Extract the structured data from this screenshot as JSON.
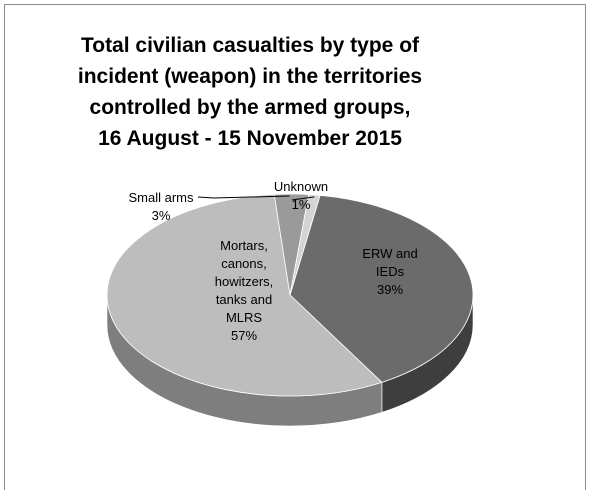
{
  "chart_data": {
    "type": "pie",
    "title_lines": [
      "Total civilian casualties by type of",
      "incident (weapon) in the territories",
      "controlled by the armed groups,",
      "16 August - 15 November 2015"
    ],
    "slices": [
      {
        "name": "ERW and IEDs",
        "value": 39,
        "label_lines": [
          "ERW and",
          "IEDs",
          "39%"
        ],
        "color": "#6b6b6b",
        "side_color": "#3e3e3e"
      },
      {
        "name": "Mortars, canons, howitzers, tanks and MLRS",
        "value": 57,
        "label_lines": [
          "Mortars,",
          "canons,",
          "howitzers,",
          "tanks and",
          "MLRS",
          "57%"
        ],
        "color": "#bdbdbd",
        "side_color": "#7e7e7e"
      },
      {
        "name": "Small arms",
        "value": 3,
        "label_lines": [
          "Small arms",
          "3%"
        ],
        "color": "#9a9a9a",
        "side_color": "#6a6a6a"
      },
      {
        "name": "Unknown",
        "value": 1,
        "label_lines": [
          "Unknown",
          "1%"
        ],
        "color": "#d4d4d4",
        "side_color": "#9a9a9a"
      }
    ],
    "style": "3d-pie"
  }
}
